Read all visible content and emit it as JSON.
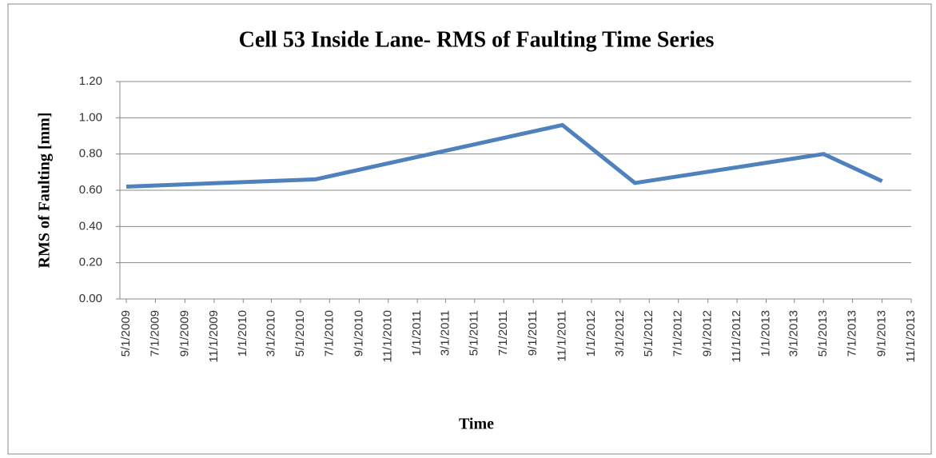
{
  "chart_data": {
    "type": "line",
    "title": "Cell 53 Inside Lane- RMS of Faulting Time Series",
    "x_label": "Time",
    "y_label": "RMS of Faulting [mm]",
    "x": [
      "5/1/2009",
      "6/1/2010",
      "11/1/2011",
      "4/1/2012",
      "5/1/2013",
      "9/1/2013"
    ],
    "series": [
      {
        "name": "RMS of Faulting",
        "color": "#4f81bd",
        "values": [
          0.62,
          0.66,
          0.96,
          0.64,
          0.8,
          0.65
        ]
      }
    ],
    "xlim": [
      "5/1/2009",
      "11/1/2013"
    ],
    "xticks": [
      "5/1/2009",
      "7/1/2009",
      "9/1/2009",
      "11/1/2009",
      "1/1/2010",
      "3/1/2010",
      "5/1/2010",
      "7/1/2010",
      "9/1/2010",
      "11/1/2010",
      "1/1/2011",
      "3/1/2011",
      "5/1/2011",
      "7/1/2011",
      "9/1/2011",
      "11/1/2011",
      "1/1/2012",
      "3/1/2012",
      "5/1/2012",
      "7/1/2012",
      "9/1/2012",
      "11/1/2012",
      "1/1/2013",
      "3/1/2013",
      "5/1/2013",
      "7/1/2013",
      "9/1/2013",
      "11/1/2013"
    ],
    "ylim": [
      0,
      1.2
    ],
    "yticks": [
      {
        "value": 0,
        "label": "0.00"
      },
      {
        "value": 0.2,
        "label": "0.20"
      },
      {
        "value": 0.4,
        "label": "0.40"
      },
      {
        "value": 0.6,
        "label": "0.60"
      },
      {
        "value": 0.8,
        "label": "0.80"
      },
      {
        "value": 1.0,
        "label": "1.00"
      },
      {
        "value": 1.2,
        "label": "1.20"
      }
    ],
    "grid": true
  }
}
